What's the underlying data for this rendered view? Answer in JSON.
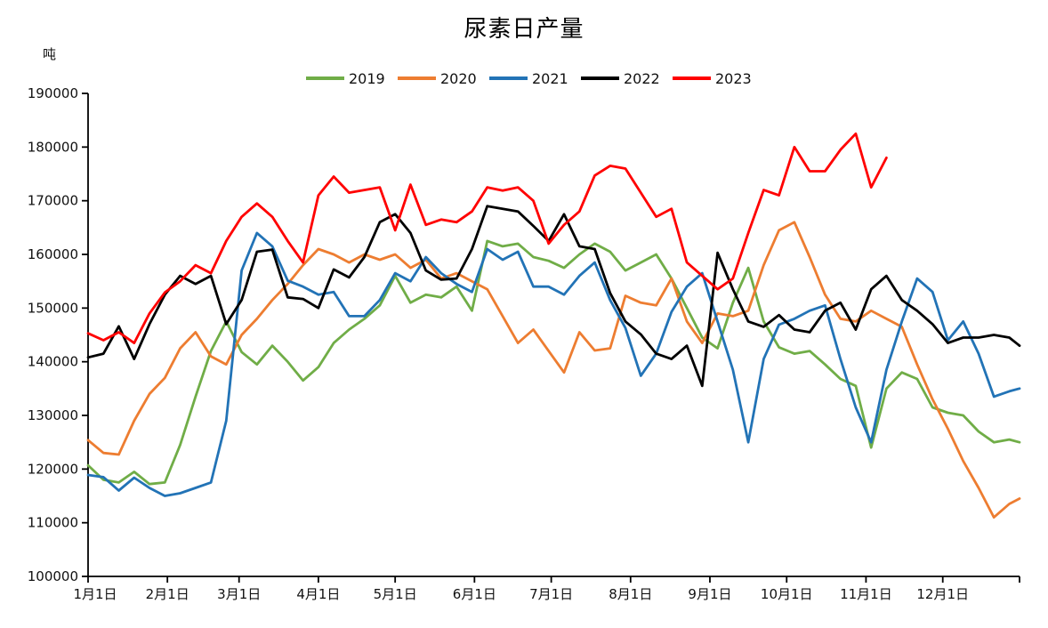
{
  "title": "尿素日产量",
  "y_axis": {
    "unit": "吨",
    "min": 100000,
    "max": 190000,
    "step": 10000,
    "tick_labels": [
      "100000",
      "110000",
      "120000",
      "130000",
      "140000",
      "150000",
      "160000",
      "170000",
      "180000",
      "190000"
    ]
  },
  "x_axis": {
    "tick_labels": [
      "1月1日",
      "2月1日",
      "3月1日",
      "4月1日",
      "5月1日",
      "6月1日",
      "7月1日",
      "8月1日",
      "9月1日",
      "10月1日",
      "11月1日",
      "12月1日"
    ],
    "month_start_days": [
      0,
      31,
      59,
      90,
      120,
      151,
      181,
      212,
      243,
      273,
      304,
      334
    ],
    "end_day": 364
  },
  "legend": [
    {
      "label": "2019",
      "color": "#70AD47"
    },
    {
      "label": "2020",
      "color": "#ED7D31"
    },
    {
      "label": "2021",
      "color": "#2273B6"
    },
    {
      "label": "2022",
      "color": "#000000"
    },
    {
      "label": "2023",
      "color": "#FF0000"
    }
  ],
  "chart_data": {
    "type": "line",
    "title": "尿素日产量",
    "ylabel": "吨",
    "ylim": [
      100000,
      190000
    ],
    "grid": false,
    "legend_position": "top",
    "x_unit": "day_of_year",
    "sample_days": [
      0,
      6,
      12,
      18,
      24,
      30,
      36,
      42,
      48,
      54,
      60,
      66,
      72,
      78,
      84,
      90,
      96,
      102,
      108,
      114,
      120,
      126,
      132,
      138,
      144,
      150,
      156,
      162,
      168,
      174,
      180,
      186,
      192,
      198,
      204,
      210,
      216,
      222,
      228,
      234,
      240,
      246,
      252,
      258,
      264,
      270,
      276,
      282,
      288,
      294,
      300,
      306,
      312,
      318,
      324,
      330,
      336,
      342,
      348,
      354,
      360,
      364
    ],
    "series": [
      {
        "name": "2019",
        "color": "#70AD47",
        "values": [
          120700,
          118000,
          117500,
          119500,
          117200,
          117500,
          124500,
          133500,
          142000,
          147500,
          141800,
          139500,
          143000,
          140000,
          136500,
          139000,
          143500,
          146000,
          148000,
          150500,
          156000,
          151000,
          152500,
          152000,
          154000,
          149500,
          162500,
          161500,
          162000,
          159500,
          158800,
          157500,
          160000,
          162000,
          160500,
          157000,
          158500,
          160000,
          155500,
          150000,
          144500,
          142500,
          151000,
          157500,
          147500,
          142700,
          141500,
          142000,
          139500,
          136800,
          135500,
          124000,
          135000,
          138000,
          136800,
          131500,
          130500,
          130000,
          127000,
          125000,
          125500,
          125000
        ]
      },
      {
        "name": "2020",
        "color": "#ED7D31",
        "values": [
          125400,
          123000,
          122700,
          129000,
          134000,
          137000,
          142500,
          145500,
          141000,
          139500,
          145000,
          148000,
          151500,
          154500,
          158000,
          161000,
          160000,
          158500,
          160000,
          159000,
          160000,
          157500,
          159000,
          155500,
          156500,
          155000,
          153500,
          148500,
          143500,
          146000,
          142000,
          138000,
          145500,
          142100,
          142500,
          152300,
          151000,
          150500,
          155500,
          147500,
          143500,
          149000,
          148500,
          149500,
          158000,
          164500,
          166000,
          159500,
          152500,
          148000,
          147500,
          149500,
          148000,
          146500,
          139500,
          133000,
          127500,
          121500,
          116500,
          111000,
          113500,
          114500
        ]
      },
      {
        "name": "2021",
        "color": "#2273B6",
        "values": [
          118900,
          118500,
          116000,
          118400,
          116500,
          115000,
          115500,
          116500,
          117500,
          129000,
          157000,
          164000,
          161500,
          155100,
          154000,
          152500,
          153000,
          148500,
          148500,
          151500,
          156500,
          155000,
          159500,
          156500,
          154500,
          153000,
          161000,
          159000,
          160500,
          154000,
          154000,
          152500,
          156000,
          158500,
          151500,
          146300,
          137400,
          141500,
          149300,
          154000,
          156500,
          147500,
          138500,
          125000,
          140500,
          146900,
          148000,
          149500,
          150500,
          140500,
          131500,
          125000,
          138500,
          147500,
          155500,
          153000,
          144000,
          147500,
          141500,
          133500,
          134500,
          135000
        ]
      },
      {
        "name": "2022",
        "color": "#000000",
        "values": [
          140800,
          141500,
          146600,
          140500,
          147000,
          152500,
          156000,
          154500,
          156000,
          147000,
          151500,
          160500,
          160900,
          152000,
          151700,
          150000,
          157200,
          155700,
          159500,
          166000,
          167500,
          164000,
          157000,
          155300,
          155500,
          161000,
          169000,
          168500,
          168000,
          165300,
          162500,
          167500,
          161500,
          161000,
          152800,
          147500,
          145100,
          141500,
          140500,
          143000,
          135500,
          160300,
          153500,
          147500,
          146500,
          148700,
          146000,
          145500,
          149500,
          151000,
          146000,
          153500,
          156000,
          151500,
          149500,
          147000,
          143500,
          144500,
          144500,
          145000,
          144500,
          143000
        ]
      },
      {
        "name": "2023",
        "color": "#FF0000",
        "values": [
          145300,
          144000,
          145500,
          143500,
          149000,
          152900,
          155000,
          158000,
          156500,
          162500,
          167000,
          169500,
          167000,
          162500,
          158500,
          171000,
          174500,
          171500,
          172000,
          172500,
          164500,
          173000,
          165500,
          166500,
          166000,
          168000,
          172500,
          171900,
          172500,
          170000,
          162000,
          165500,
          168000,
          174700,
          176500,
          176000,
          171500,
          167000,
          168500,
          158500,
          156000,
          153500,
          155500,
          164000,
          172000,
          171000,
          180000,
          175500,
          175500,
          179500,
          182500,
          172500,
          178000,
          null,
          null,
          null,
          null,
          null,
          null,
          null,
          null,
          null
        ]
      }
    ]
  }
}
